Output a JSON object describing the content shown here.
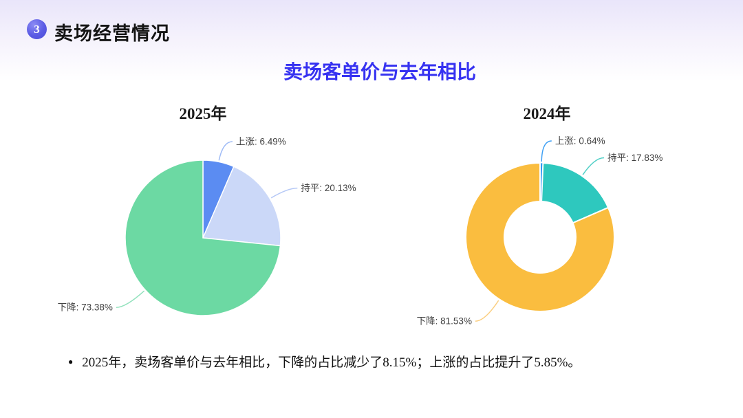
{
  "page": {
    "bg_top_color": "#E9E5FA",
    "bg_bottom_color": "#FFFFFF"
  },
  "header": {
    "badge_number": "3",
    "badge_color": "#5A5AE4",
    "section_title": "卖场经营情况"
  },
  "main": {
    "title": "卖场客单价与去年相比",
    "title_color": "#3632F1"
  },
  "chart_data": [
    {
      "type": "pie",
      "title": "2025年",
      "center": [
        295,
        346
      ],
      "radius": 113,
      "inner_radius": 0,
      "label_color": "#404040",
      "categories": [
        "上涨",
        "持平",
        "下降"
      ],
      "values": [
        6.49,
        20.13,
        73.38
      ],
      "slices": [
        {
          "name": "上涨",
          "value": 6.49,
          "display": "上涨: 6.49%",
          "color": "#5B8CF2",
          "line_color": "#A0BCF6",
          "leader_len": 30
        },
        {
          "name": "持平",
          "value": 20.13,
          "display": "持平: 20.13%",
          "color": "#CBD8F8",
          "line_color": "#B6C9F6",
          "leader_len": 30
        },
        {
          "name": "下降",
          "value": 73.38,
          "display": "下降: 73.38%",
          "color": "#6CD9A3",
          "line_color": "#92E2BD",
          "leader_len": 38
        }
      ]
    },
    {
      "type": "donut",
      "title": "2024年",
      "center": [
        785,
        345
      ],
      "radius": 108,
      "inner_radius": 52,
      "label_color": "#404040",
      "categories": [
        "上涨",
        "持平",
        "下降"
      ],
      "values": [
        0.64,
        17.83,
        81.53
      ],
      "slices": [
        {
          "name": "上涨",
          "value": 0.64,
          "display": "上涨: 0.64%",
          "color": "#2F9BF3",
          "line_color": "#3FA0F4",
          "leader_len": 32
        },
        {
          "name": "持平",
          "value": 17.83,
          "display": "持平: 17.83%",
          "color": "#2EC8BE",
          "line_color": "#52D0C7",
          "leader_len": 32
        },
        {
          "name": "下降",
          "value": 81.53,
          "display": "下降: 81.53%",
          "color": "#FABD3F",
          "line_color": "#FBCE7E",
          "leader_len": 38
        }
      ]
    }
  ],
  "note": {
    "bullet": "●",
    "text": "2025年，卖场客单价与去年相比，下降的占比减少了8.15%；上涨的占比提升了5.85%。"
  }
}
